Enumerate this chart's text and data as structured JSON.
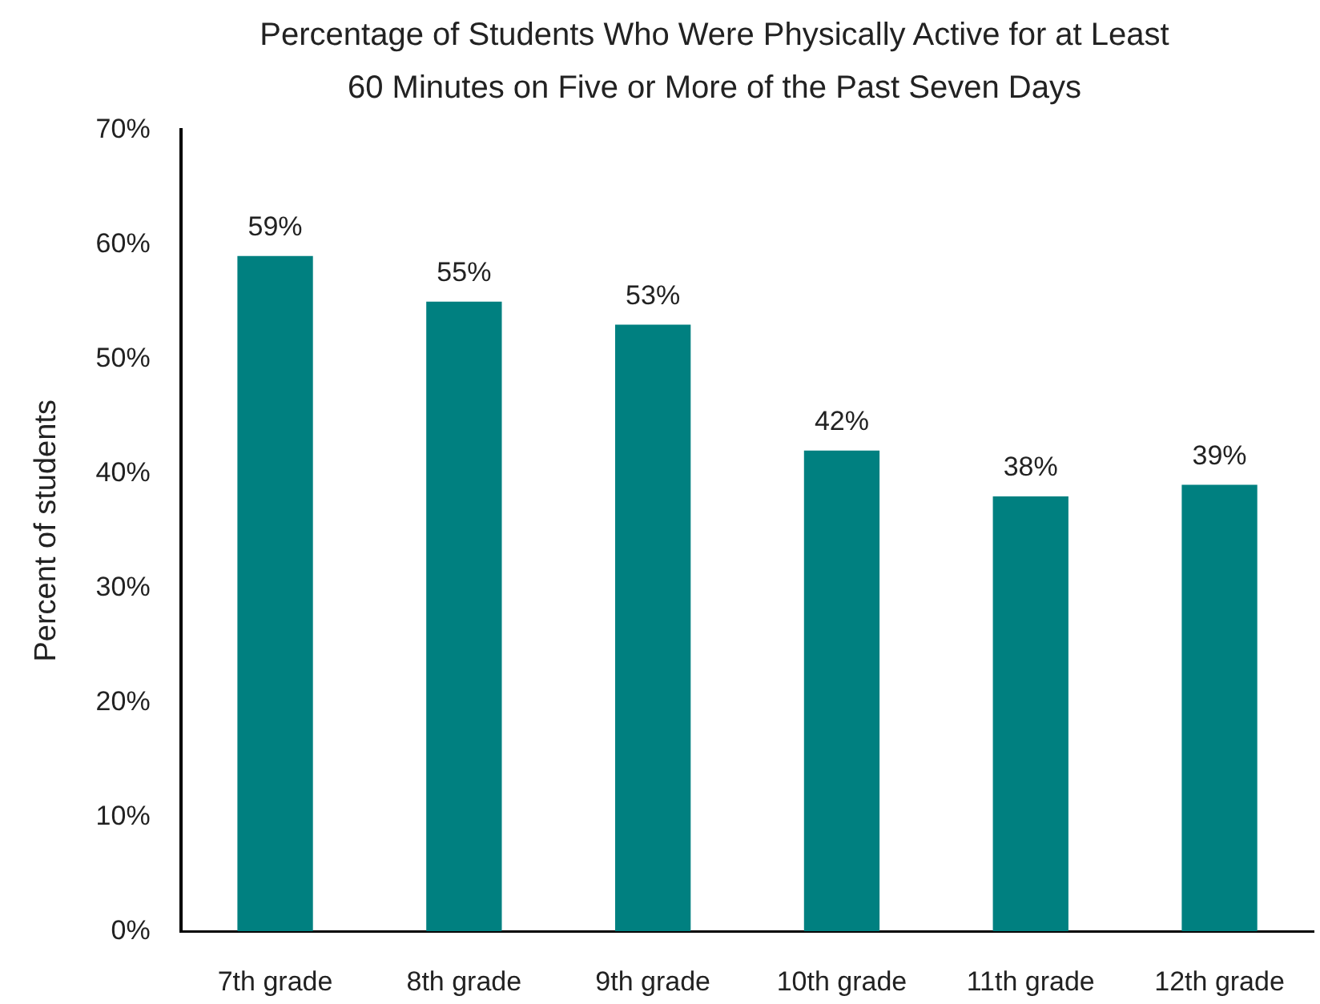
{
  "chart_data": {
    "type": "bar",
    "title": "Percentage of Students Who Were Physically Active for at Least 60 Minutes on Five or More of the Past Seven Days",
    "ylabel": "Percent of students",
    "categories": [
      "7th grade",
      "8th grade",
      "9th grade",
      "10th grade",
      "11th grade",
      "12th grade"
    ],
    "values": [
      59,
      55,
      53,
      42,
      38,
      39
    ],
    "value_labels": [
      "59%",
      "55%",
      "53%",
      "42%",
      "38%",
      "39%"
    ],
    "color": "#008080",
    "ylim": [
      0,
      70
    ],
    "yticks": [
      {
        "value": 0,
        "label": "0%"
      },
      {
        "value": 10,
        "label": "10%"
      },
      {
        "value": 20,
        "label": "20%"
      },
      {
        "value": 30,
        "label": "30%"
      },
      {
        "value": 40,
        "label": "40%"
      },
      {
        "value": 50,
        "label": "50%"
      },
      {
        "value": 60,
        "label": "60%"
      },
      {
        "value": 70,
        "label": "70%"
      }
    ]
  }
}
